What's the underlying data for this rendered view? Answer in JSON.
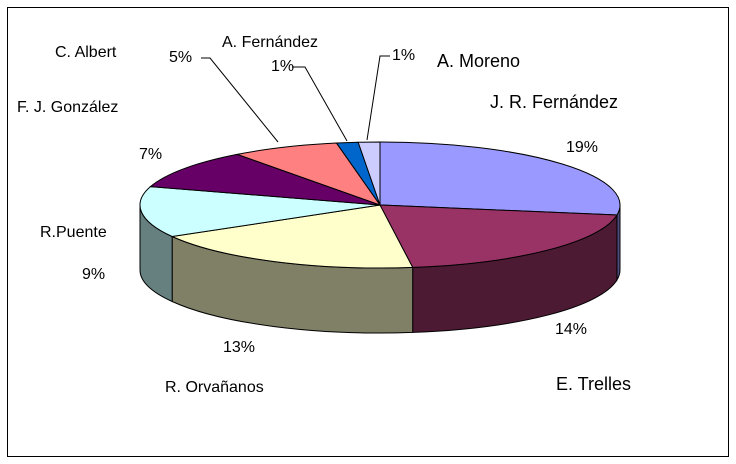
{
  "chart_data": {
    "type": "pie3d",
    "categories": [
      "J. R. Fernández",
      "E. Trelles",
      "R. Orvañanos",
      "R.Puente",
      "F. J. González",
      "C. Albert",
      "A. Fernández",
      "A. Moreno"
    ],
    "values": [
      19,
      14,
      13,
      9,
      7,
      5,
      1,
      1
    ],
    "value_labels": [
      "19%",
      "14%",
      "13%",
      "9%",
      "7%",
      "5%",
      "1%",
      "1%"
    ],
    "colors": [
      "#9999ff",
      "#993366",
      "#ffffcc",
      "#ccffff",
      "#660066",
      "#ff8080",
      "#0066cc",
      "#ccccff"
    ]
  }
}
